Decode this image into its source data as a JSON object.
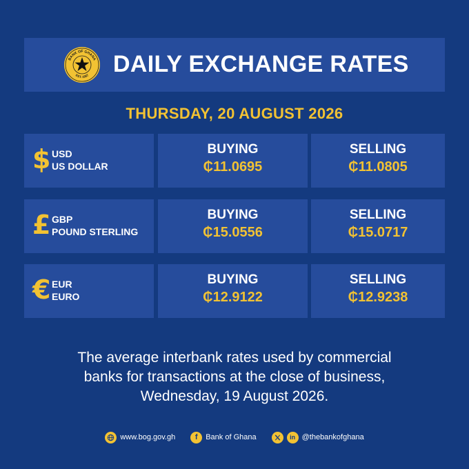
{
  "header": {
    "title": "DAILY EXCHANGE RATES",
    "logo_text": "BANK OF GHANA · EST. 1957"
  },
  "date": "THURSDAY, 20 AUGUST 2026",
  "currency_symbol": "₵",
  "rates": [
    {
      "symbol": "$",
      "code": "USD",
      "name": "US DOLLAR",
      "buying_label": "BUYING",
      "buying": "₵11.0695",
      "selling_label": "SELLING",
      "selling": "₵11.0805"
    },
    {
      "symbol": "£",
      "code": "GBP",
      "name": "POUND STERLING",
      "buying_label": "BUYING",
      "buying": "₵15.0556",
      "selling_label": "SELLING",
      "selling": "₵15.0717"
    },
    {
      "symbol": "€",
      "code": "EUR",
      "name": "EURO",
      "buying_label": "BUYING",
      "buying": "₵12.9122",
      "selling_label": "SELLING",
      "selling": "₵12.9238"
    }
  ],
  "note": {
    "line1": "The average interbank rates used by commercial",
    "line2": "banks for transactions at the close of business,",
    "line3": "Wednesday, 19 August 2026."
  },
  "footer": {
    "website": "www.bog.gov.gh",
    "facebook": "Bank of Ghana",
    "social_handle": "@thebankofghana"
  },
  "colors": {
    "background": "#143a7f",
    "panel": "#264c9c",
    "accent_gold": "#f2c233",
    "text": "#ffffff"
  },
  "icons": {
    "website": "globe-icon",
    "facebook": "facebook-icon",
    "x": "x-icon",
    "linkedin": "linkedin-icon"
  }
}
